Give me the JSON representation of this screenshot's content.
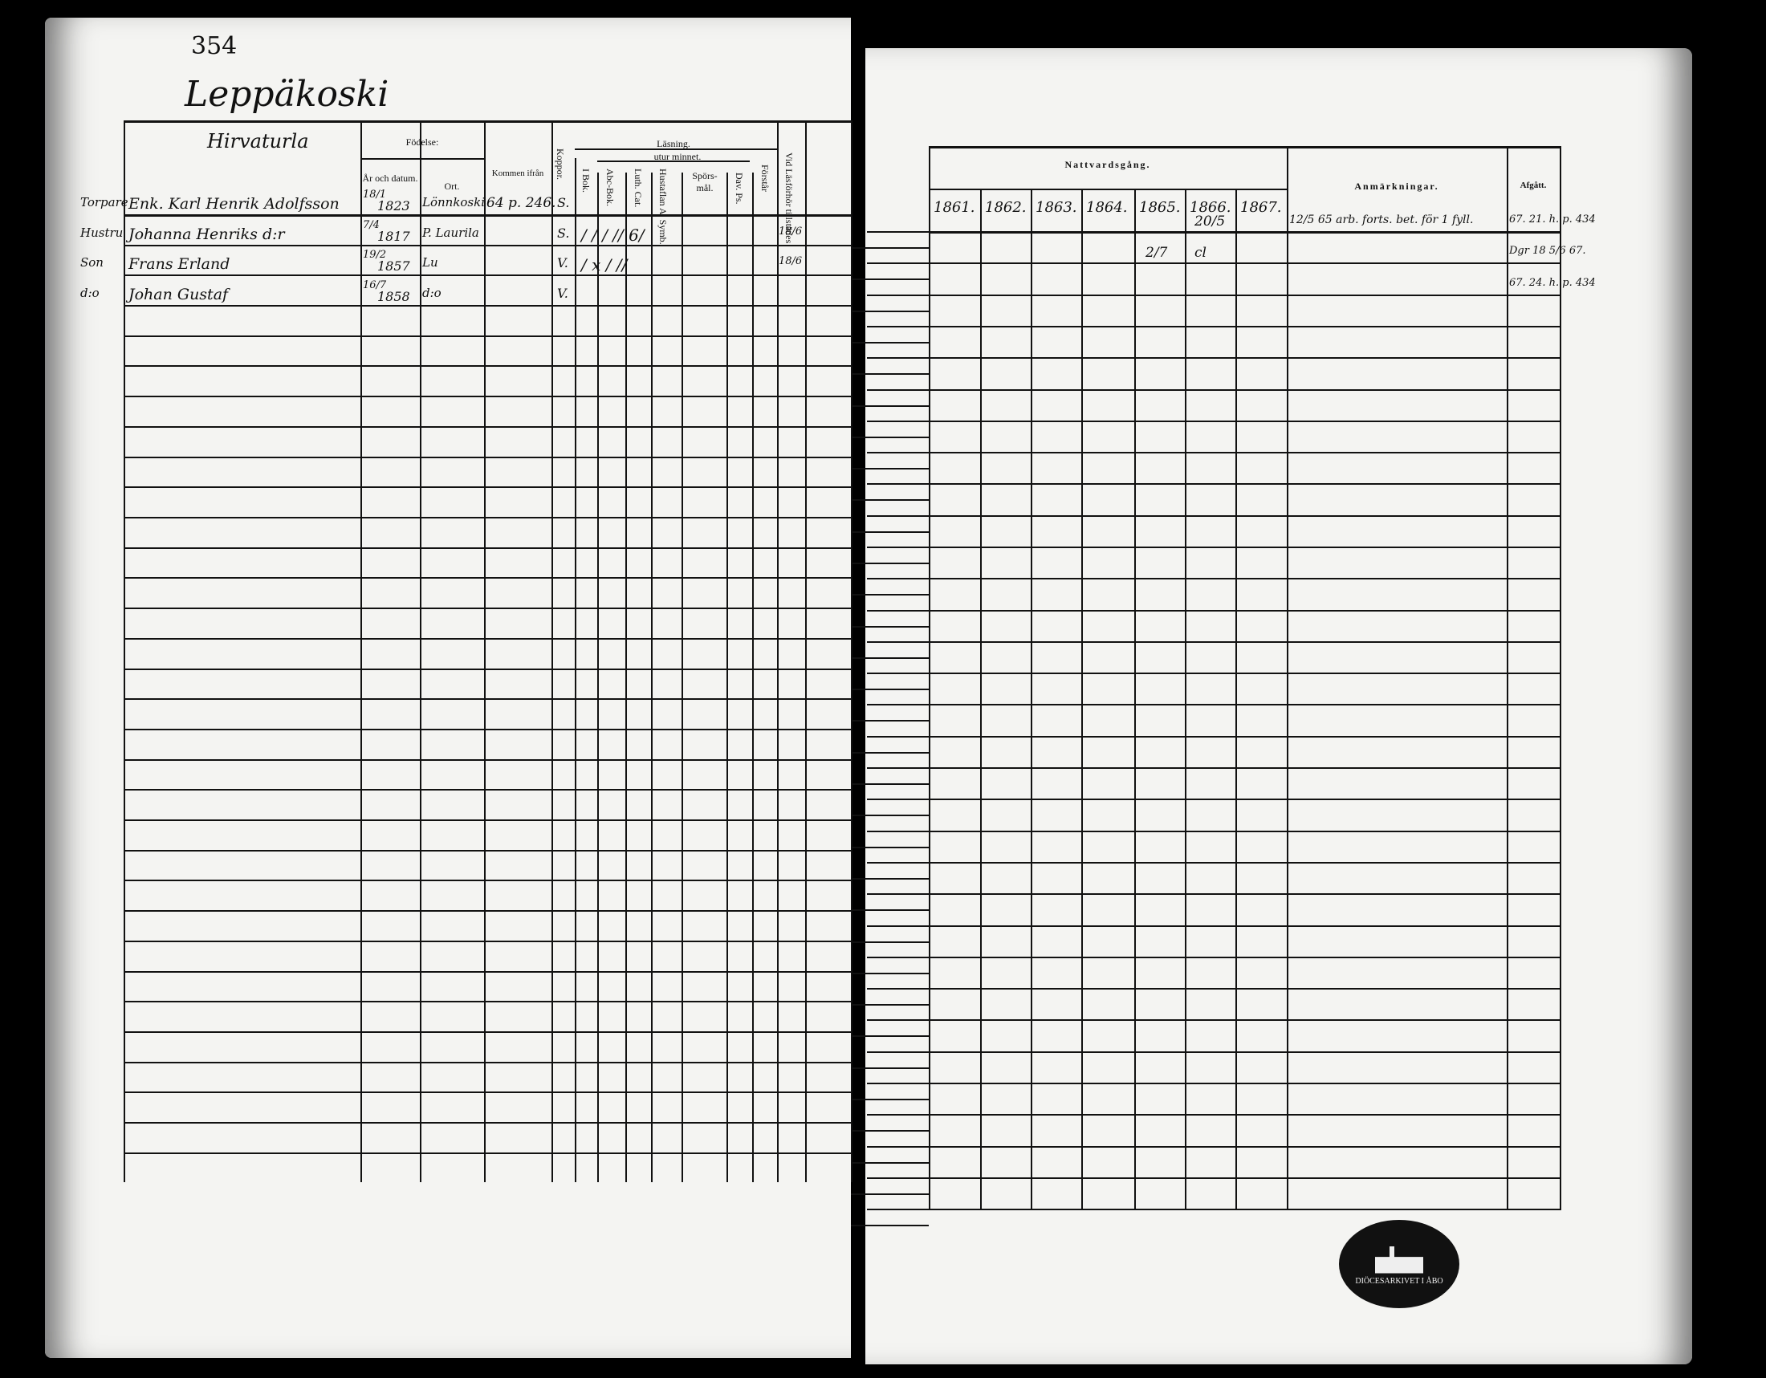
{
  "left_page": {
    "page_number": "354",
    "village": "Leppäkoski",
    "household_heading": "Hirvaturla",
    "headers": {
      "birth": "Födelse:",
      "year_date": "År och datum.",
      "place": "Ort.",
      "came_from": "Kommen ifrån",
      "smallpox": "Koppor.",
      "reading": "Läsning.",
      "from_memory": "utur minnet.",
      "in_book": "I Bok.",
      "abc_book": "Abc-Bok.",
      "luth_cat": "Luth. Cat.",
      "hustafl": "Hustaflan A. Symb.",
      "questions": "Spörs-mål.",
      "dav_ps": "Dav. Ps.",
      "understands": "Förstår",
      "present": "Vid Läsförhör tillstädes"
    },
    "entries": [
      {
        "role": "Torpare",
        "name": "Enk. Karl Henrik Adolfsson",
        "date": "18/1",
        "year": "1823",
        "place": "Lönnkoski",
        "came_from": "64 p. 246.",
        "smallpox": "S.",
        "reading": "",
        "present": ""
      },
      {
        "role": "Hustru",
        "name": "Johanna Henriks d:r",
        "date": "7/4",
        "year": "1817",
        "place": "P. Laurila",
        "came_from": "",
        "smallpox": "S.",
        "reading": "/ / / // 6/",
        "present": "18/6"
      },
      {
        "role": "Son",
        "name": "Frans Erland",
        "date": "19/2",
        "year": "1857",
        "place": "Lu",
        "came_from": "",
        "smallpox": "V.",
        "reading": "/ x / //",
        "present": "18/6"
      },
      {
        "role": "d:o",
        "name": "Johan Gustaf",
        "date": "16/7",
        "year": "1858",
        "place": "d:o",
        "came_from": "",
        "smallpox": "V.",
        "reading": "",
        "present": ""
      }
    ]
  },
  "right_page": {
    "headers": {
      "communion": "Nattvardsgång.",
      "years": [
        "1861.",
        "1862.",
        "1863.",
        "1864.",
        "1865.",
        "1866.",
        "1867."
      ],
      "remarks": "Anmärkningar.",
      "departed": "Afgått."
    },
    "entries": [
      {
        "y1866": "20/5",
        "y1865": "",
        "remarks": "12/5 65 arb. forts. bet. för 1 fyll.",
        "departed": "67. 21. h. p. 434"
      },
      {
        "y1866": "cl",
        "y1865": "2/7",
        "remarks": "",
        "departed": "Dgr 18 5/6 67."
      },
      {
        "y1866": "",
        "y1865": "",
        "remarks": "",
        "departed": "67. 24. h. p. 434"
      }
    ],
    "stamp_text": "DIÖCESARKIVET I ÅBO"
  }
}
